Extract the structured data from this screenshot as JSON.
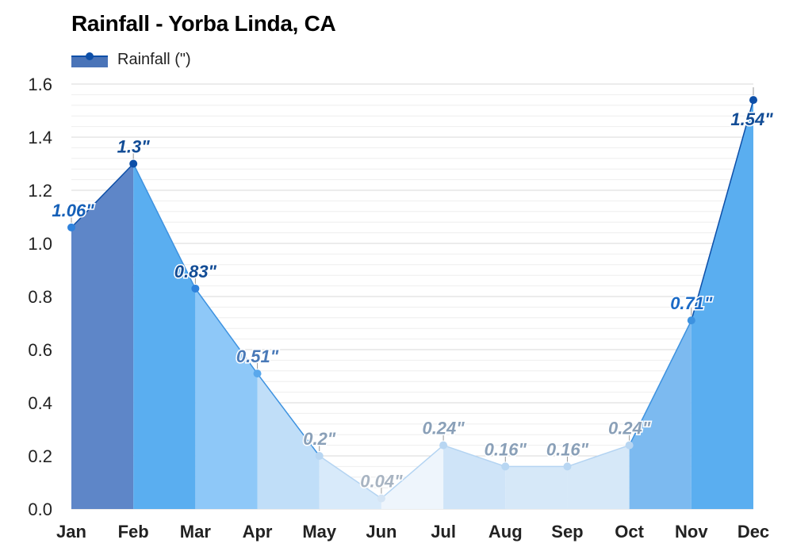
{
  "chart_data": {
    "type": "area",
    "title": "Rainfall - Yorba Linda, CA",
    "categories": [
      "Jan",
      "Feb",
      "Mar",
      "Apr",
      "May",
      "Jun",
      "Jul",
      "Aug",
      "Sep",
      "Oct",
      "Nov",
      "Dec"
    ],
    "series": [
      {
        "name": "Rainfall (\")",
        "values": [
          1.06,
          1.3,
          0.83,
          0.51,
          0.2,
          0.04,
          0.24,
          0.16,
          0.16,
          0.24,
          0.71,
          1.54
        ],
        "labels": [
          "1.06\"",
          "1.3\"",
          "0.83\"",
          "0.51\"",
          "0.2\"",
          "0.04\"",
          "0.24\"",
          "0.16\"",
          "0.16\"",
          "0.24\"",
          "0.71\"",
          "1.54\""
        ]
      }
    ],
    "ylim": [
      0,
      1.6
    ],
    "yticks": [
      "0.0",
      "0.2",
      "0.4",
      "0.6",
      "0.8",
      "1.0",
      "1.2",
      "1.4",
      "1.6"
    ],
    "grid": true,
    "legend_position": "top-left",
    "colors": {
      "line": "#0d4fa8",
      "legend_fill": "#4a74b8",
      "segment_fills": [
        "#5e86c8",
        "#5aaef0",
        "#8ec8f8",
        "#c0def8",
        "#d8eafa",
        "#eef5fc",
        "#cfe4f8",
        "#d6e8f8",
        "#d6e8f8",
        "#7cbaf0",
        "#5aaef0",
        "#5a82c4"
      ],
      "label_colors": [
        "#1560b8",
        "#134d96",
        "#134d96",
        "#4a7ab8",
        "#8aa0b8",
        "#a8b4c2",
        "#8aa0b8",
        "#8aa0b8",
        "#8aa0b8",
        "#8aa0b8",
        "#1a6ac6",
        "#134d96"
      ]
    }
  }
}
